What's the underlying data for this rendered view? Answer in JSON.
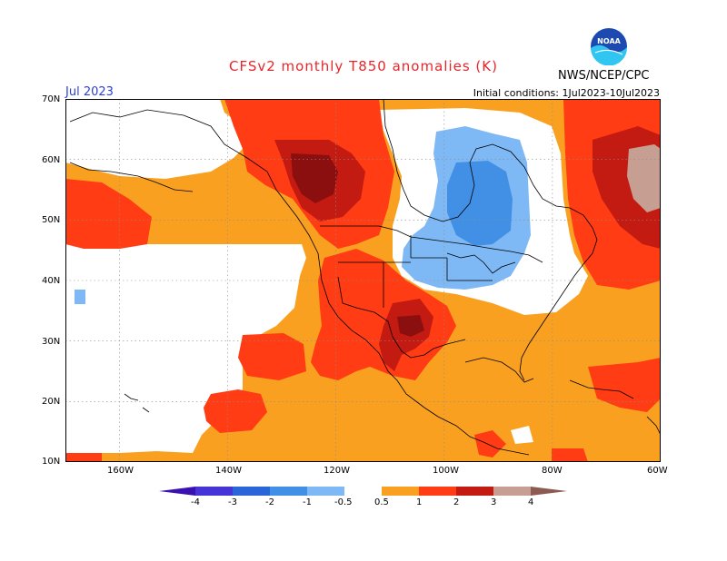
{
  "header": {
    "title": "CFSv2 monthly T850 anomalies (K)",
    "month": "Jul 2023",
    "initial_conditions": "Initial conditions: 1Jul2023-10Jul2023",
    "agency": "NWS/NCEP/CPC",
    "logo_text": "NOAA"
  },
  "map": {
    "lat_labels": [
      "70N",
      "60N",
      "50N",
      "40N",
      "30N",
      "20N",
      "10N"
    ],
    "lon_labels": [
      "160W",
      "140W",
      "120W",
      "100W",
      "80W",
      "60W"
    ]
  },
  "colorbar": {
    "labels": [
      "-4",
      "-3",
      "-2",
      "-1",
      "-0.5",
      "0.5",
      "1",
      "2",
      "3",
      "4"
    ],
    "colors": {
      "lt_-4": "#3b10b0",
      "-4_-3": "#4534d6",
      "-3_-2": "#2b66d8",
      "-2_-1": "#4290e6",
      "-1_-0.5": "#7fb9f5",
      "-0.5_0.5": "#ffffff",
      "0.5_1": "#f9a020",
      "1_2": "#ff3c14",
      "2_3": "#c31a12",
      "3_4": "#8b0f0f",
      "gt_4": "#c79f92"
    }
  }
}
